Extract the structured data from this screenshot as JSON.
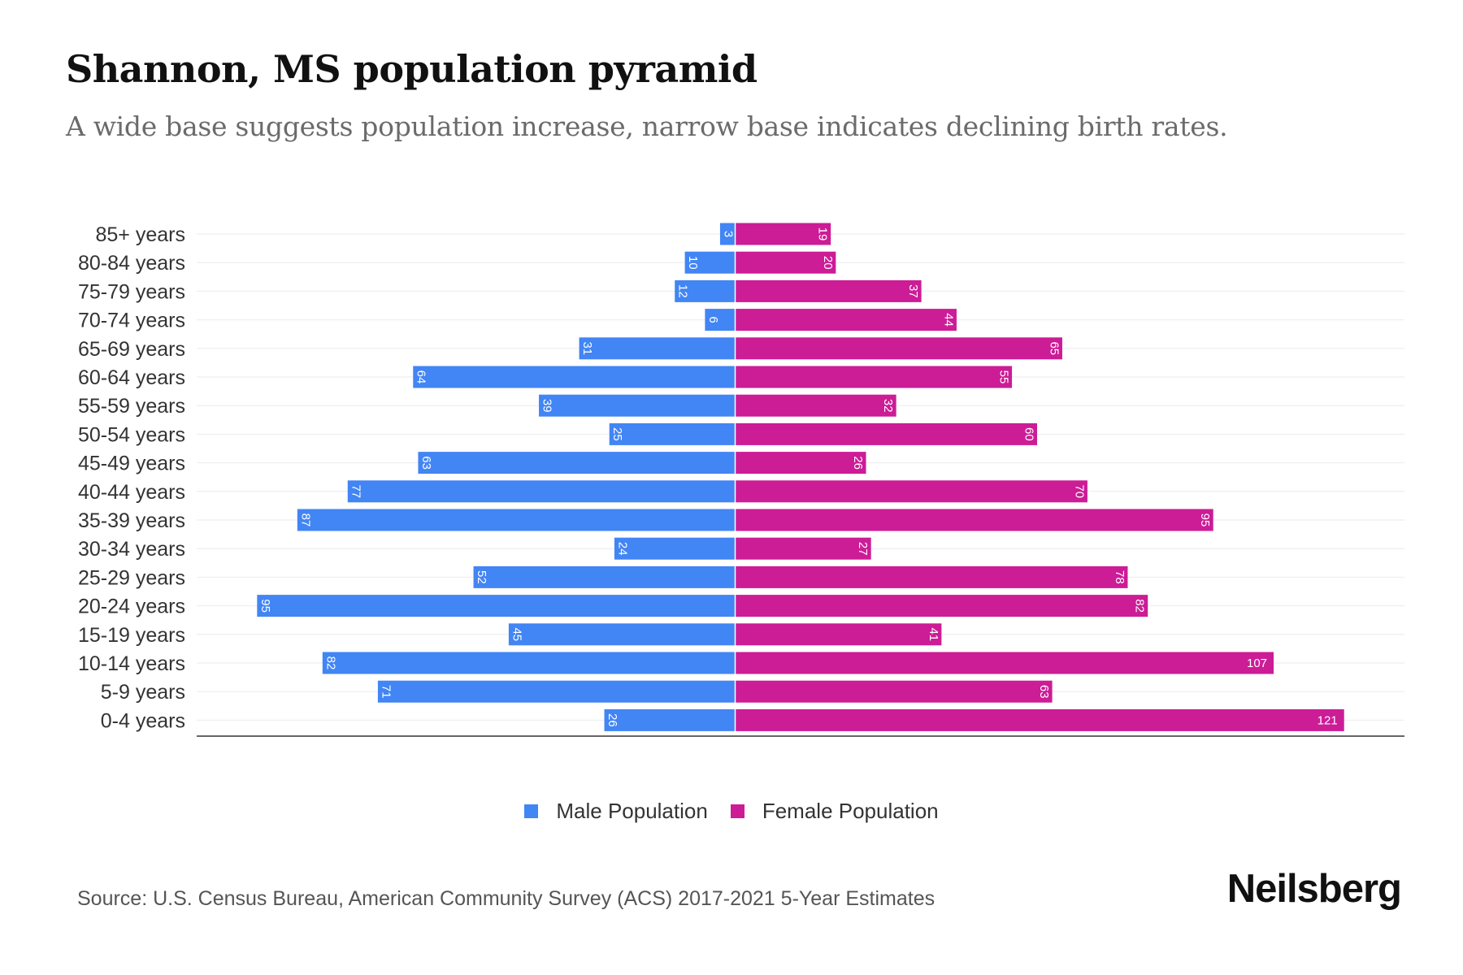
{
  "title": "Shannon, MS population pyramid",
  "subtitle": "A wide base suggests population increase, narrow base indicates declining birth rates.",
  "source": "Source: U.S. Census Bureau, American Community Survey (ACS) 2017-2021 5-Year Estimates",
  "brand": "Neilsberg",
  "colors": {
    "male": "#4285f4",
    "female": "#cc1c96"
  },
  "chart_data": {
    "type": "bar",
    "orientation": "horizontal-diverging",
    "categories": [
      "85+ years",
      "80-84 years",
      "75-79 years",
      "70-74 years",
      "65-69 years",
      "60-64 years",
      "55-59 years",
      "50-54 years",
      "45-49 years",
      "40-44 years",
      "35-39 years",
      "30-34 years",
      "25-29 years",
      "20-24 years",
      "15-19 years",
      "10-14 years",
      "5-9 years",
      "0-4 years"
    ],
    "series": [
      {
        "name": "Male Population",
        "values": [
          3,
          10,
          12,
          6,
          31,
          64,
          39,
          25,
          63,
          77,
          87,
          24,
          52,
          95,
          45,
          82,
          71,
          26
        ]
      },
      {
        "name": "Female Population",
        "values": [
          19,
          20,
          37,
          44,
          65,
          55,
          32,
          60,
          26,
          70,
          95,
          27,
          78,
          82,
          41,
          107,
          63,
          121
        ]
      }
    ],
    "xlim": [
      -107,
      133
    ],
    "grid": true,
    "legend_position": "bottom-center"
  }
}
